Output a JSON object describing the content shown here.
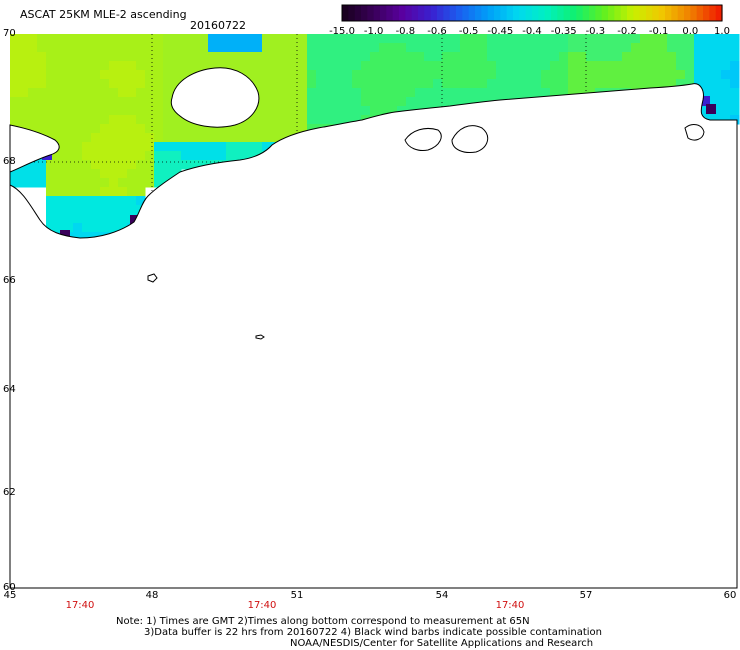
{
  "header": {
    "title": "ASCAT 25KM MLE-2 ascending",
    "date": "20160722"
  },
  "colorbar": {
    "labels": [
      "-15.0",
      "-1.0",
      "-0.8",
      "-0.6",
      "-0.5",
      "-0.45",
      "-0.4",
      "-0.35",
      "-0.3",
      "-0.2",
      "-0.1",
      "0.0",
      "1.0"
    ],
    "colors": [
      "#1a0020",
      "#3a005a",
      "#5a00a0",
      "#3a20d0",
      "#1a60f0",
      "#00a0f8",
      "#00d8f0",
      "#00f0c0",
      "#10f070",
      "#60f020",
      "#c8f000",
      "#f0c800",
      "#f08000",
      "#f02000"
    ]
  },
  "map": {
    "lat_labels": [
      "70",
      "68",
      "66",
      "64",
      "62",
      "60"
    ],
    "lon_labels": [
      "45",
      "48",
      "51",
      "54",
      "57",
      "60"
    ],
    "time_labels": [
      "17:40",
      "17:40",
      "17:40"
    ]
  },
  "notes": {
    "line1": "Note: 1) Times are GMT 2)Times along bottom correspond to measurement at 65N",
    "line2": "3)Data buffer is 22 hrs from 20160722 4) Black wind barbs indicate possible contamination",
    "line3": "NOAA/NESDIS/Center for Satellite Applications and Research"
  }
}
